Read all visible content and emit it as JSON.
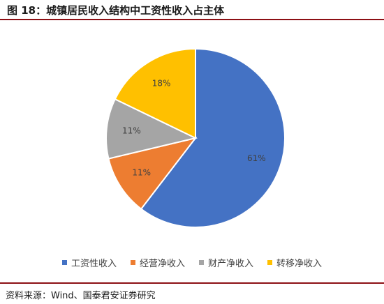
{
  "header": {
    "title": "图 18：城镇居民收入结构中工资性收入占主体"
  },
  "footer": {
    "source": "资料来源：Wind、国泰君安证券研究"
  },
  "chart_data": {
    "type": "pie",
    "title": "",
    "slices": [
      {
        "name": "工资性收入",
        "value": 61,
        "label": "61%",
        "color": "#4472c4"
      },
      {
        "name": "经营净收入",
        "value": 11,
        "label": "11%",
        "color": "#ed7d31"
      },
      {
        "name": "财产净收入",
        "value": 11,
        "label": "11%",
        "color": "#a5a5a5"
      },
      {
        "name": "转移净收入",
        "value": 18,
        "label": "18%",
        "color": "#ffc000"
      }
    ],
    "start": "12 o'clock",
    "direction": "clockwise",
    "legend_position": "bottom"
  }
}
